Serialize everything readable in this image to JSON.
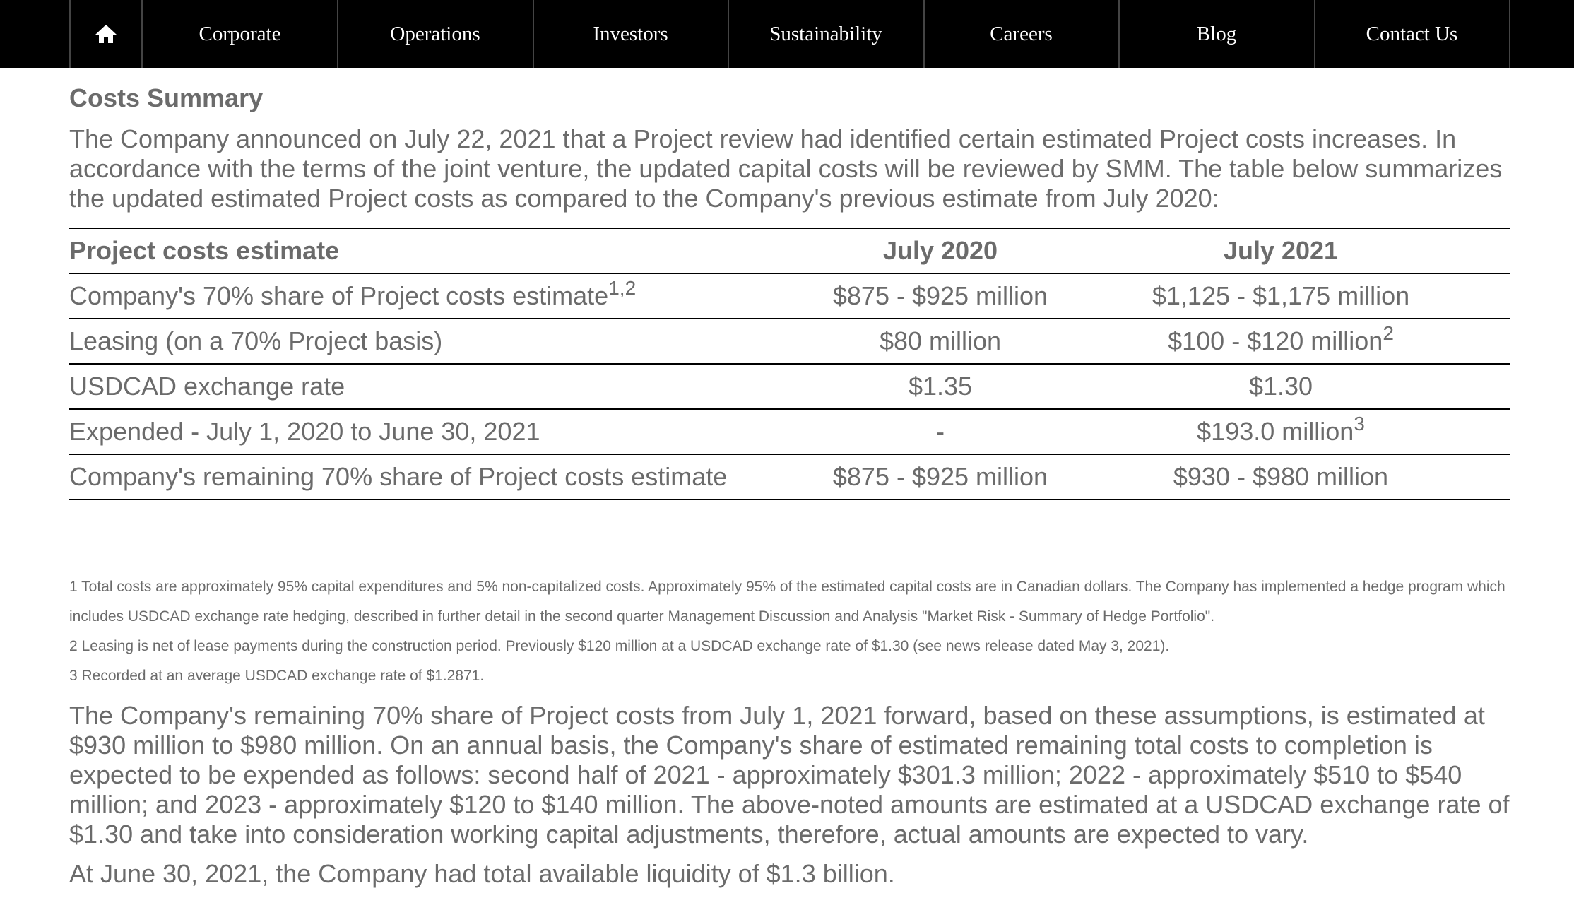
{
  "nav": [
    "Corporate",
    "Operations",
    "Investors",
    "Sustainability",
    "Careers",
    "Blog",
    "Contact Us"
  ],
  "heading": "Costs Summary",
  "intro": "The Company announced on July 22, 2021 that a Project review had identified certain estimated Project costs increases. In accordance with the terms of the joint venture, the updated capital costs will be reviewed by SMM. The table below summarizes the updated estimated Project costs as compared to the Company's previous estimate from July 2020:",
  "table": {
    "header": [
      "Project costs estimate",
      "July 2020",
      "July 2021"
    ],
    "rows": [
      [
        {
          "text": "Company's 70% share of Project costs estimate",
          "sup": "1,2"
        },
        {
          "text": "$875 - $925 million"
        },
        {
          "text": "$1,125 - $1,175 million"
        }
      ],
      [
        {
          "text": "Leasing (on a 70% Project basis)"
        },
        {
          "text": "$80 million"
        },
        {
          "text": "$100 - $120 million",
          "sup": "2"
        }
      ],
      [
        {
          "text": "USDCAD exchange rate"
        },
        {
          "text": "$1.35"
        },
        {
          "text": "$1.30"
        }
      ],
      [
        {
          "text": "Expended - July 1, 2020 to June 30, 2021"
        },
        {
          "text": "-"
        },
        {
          "text": "$193.0 million",
          "sup": "3"
        }
      ],
      [
        {
          "text": "Company's remaining 70% share of Project costs estimate"
        },
        {
          "text": "$875 - $925 million"
        },
        {
          "text": "$930 - $980 million"
        }
      ]
    ]
  },
  "footnotes": [
    "1 Total costs are approximately 95% capital expenditures and 5% non-capitalized costs. Approximately 95% of the estimated capital costs are in Canadian dollars. The Company has implemented a hedge program which includes USDCAD exchange rate hedging, described in further detail in the second quarter Management Discussion and Analysis \"Market Risk - Summary of Hedge Portfolio\".",
    "2 Leasing is net of lease payments during the construction period. Previously $120 million at a USDCAD exchange rate of $1.30 (see news release dated May 3, 2021).",
    "3 Recorded at an average USDCAD exchange rate of $1.2871."
  ],
  "paragraphs": [
    "The Company's remaining 70% share of Project costs from July 1, 2021 forward, based on these assumptions, is estimated at $930 million to $980 million. On an annual basis, the Company's share of estimated remaining total costs to completion is expected to be expended as follows: second half of 2021 - approximately $301.3 million; 2022 - approximately $510 to $540 million; and 2023 - approximately $120 to $140 million. The above-noted amounts are estimated at a USDCAD exchange rate of $1.30 and take into consideration working capital adjustments, therefore, actual amounts are expected to vary.",
    "At June 30, 2021, the Company had total available liquidity of $1.3 billion."
  ]
}
